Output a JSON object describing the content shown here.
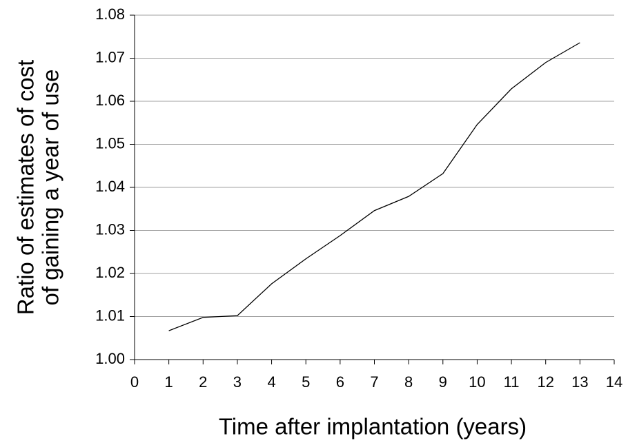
{
  "chart_data": {
    "type": "line",
    "xlabel": "Time after implantation (years)",
    "ylabel": [
      "Ratio of estimates of cost",
      "of gaining a year of use"
    ],
    "x": [
      1,
      2,
      3,
      4,
      5,
      6,
      7,
      8,
      9,
      10,
      11,
      12,
      13
    ],
    "values": [
      1.0067,
      1.0098,
      1.0102,
      1.0176,
      1.0234,
      1.0288,
      1.0346,
      1.0379,
      1.0432,
      1.0546,
      1.0629,
      1.069,
      1.0736
    ],
    "color": "#000000",
    "xlim": [
      0,
      14
    ],
    "xticks": [
      0,
      1,
      2,
      3,
      4,
      5,
      6,
      7,
      8,
      9,
      10,
      11,
      12,
      13,
      14
    ],
    "ylim": [
      1.0,
      1.08
    ],
    "yticks": [
      {
        "value": 1.0,
        "label": "1.00"
      },
      1.01,
      1.02,
      1.03,
      1.04,
      1.05,
      1.06,
      1.07,
      1.08
    ],
    "grid": true
  }
}
